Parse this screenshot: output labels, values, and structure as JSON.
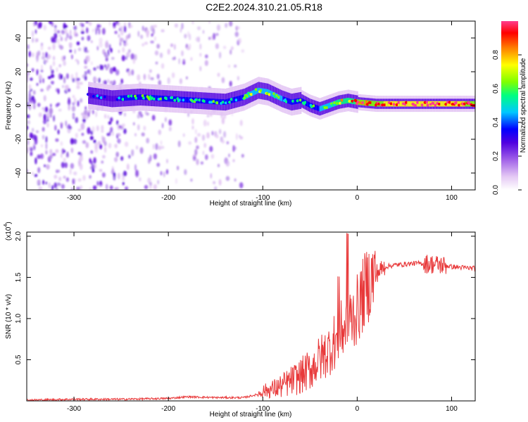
{
  "title": "C2E2.2024.310.21.05.R18",
  "chart_data": [
    {
      "type": "heatmap",
      "xlabel": "Height of straight line (km)",
      "ylabel": "Frequency (Hz)",
      "xlim": [
        -350,
        125
      ],
      "ylim": [
        -50,
        50
      ],
      "xticks": [
        -300,
        -200,
        -100,
        0,
        100
      ],
      "yticks": [
        -40,
        -20,
        0,
        20,
        40
      ],
      "colorbar": {
        "label": "Normalized spectral amplitude",
        "range": [
          0,
          1
        ],
        "ticks": [
          "0.0",
          "0.2",
          "0.4",
          "0.6",
          "0.8"
        ],
        "colormap": [
          "#ffffff",
          "#e4c8f4",
          "#a060e8",
          "#5000e0",
          "#0000ff",
          "#00c8ff",
          "#00ff80",
          "#80ff00",
          "#ffff00",
          "#ff8000",
          "#ff0000",
          "#ff3c8c"
        ]
      },
      "ridge": {
        "x": [
          -285,
          -260,
          -230,
          -200,
          -170,
          -140,
          -120,
          -105,
          -95,
          -80,
          -70,
          -60,
          -50,
          -40,
          -30,
          -20,
          -10,
          0,
          20,
          60,
          125
        ],
        "y": [
          6,
          4,
          5,
          4,
          3,
          2,
          5,
          9,
          8,
          4,
          2,
          3,
          0,
          -2,
          0,
          2,
          3,
          2,
          1,
          1,
          1
        ],
        "amplitude": [
          0.3,
          0.4,
          0.5,
          0.5,
          0.45,
          0.45,
          0.55,
          0.6,
          0.6,
          0.55,
          0.5,
          0.5,
          0.5,
          0.55,
          0.6,
          0.7,
          0.75,
          0.8,
          0.9,
          0.95,
          0.9
        ]
      },
      "grid": false
    },
    {
      "type": "line",
      "xlabel": "Height of straight line (km)",
      "ylabel": "SNR (10 * v/v)",
      "y_multiplier": "(x10",
      "y_multiplier_exp": "4",
      "y_multiplier_close": ")",
      "xlim": [
        -350,
        125
      ],
      "ylim": [
        0,
        2.05
      ],
      "xticks": [
        -300,
        -200,
        -100,
        0,
        100
      ],
      "yticks": [
        "0.5",
        "1.0",
        "1.5",
        "2.0"
      ],
      "series": [
        {
          "color": "#e8393a",
          "x": [
            -350,
            -300,
            -250,
            -200,
            -180,
            -150,
            -120,
            -105,
            -100,
            -90,
            -80,
            -70,
            -60,
            -50,
            -40,
            -30,
            -20,
            -10,
            0,
            10,
            20,
            30,
            40,
            50,
            60,
            70,
            80,
            90,
            100,
            110,
            125
          ],
          "y": [
            0.01,
            0.02,
            0.02,
            0.03,
            0.05,
            0.04,
            0.04,
            0.08,
            0.12,
            0.14,
            0.18,
            0.24,
            0.3,
            0.38,
            0.5,
            0.62,
            0.8,
            0.95,
            1.1,
            1.4,
            1.55,
            1.63,
            1.65,
            1.66,
            1.67,
            1.67,
            1.66,
            1.65,
            1.63,
            1.62,
            1.61
          ]
        }
      ],
      "grid": false
    }
  ]
}
